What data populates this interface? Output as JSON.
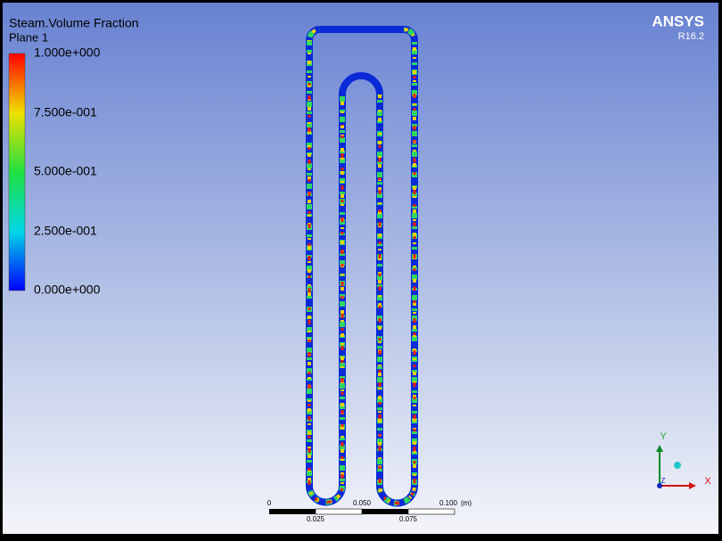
{
  "legend": {
    "title": "Steam.Volume Fraction",
    "subtitle": "Plane 1",
    "ticks": [
      "1.000e+000",
      "7.500e-001",
      "5.000e-001",
      "2.500e-001",
      "0.000e+000"
    ]
  },
  "logo": {
    "name": "ANSYS",
    "version": "R16.2"
  },
  "scale_bar": {
    "top_labels": [
      "0",
      "0.050",
      "0.100"
    ],
    "unit": "(m)",
    "bottom_labels": [
      "0.025",
      "0.075"
    ]
  },
  "axes": {
    "y": "Y",
    "x": "X",
    "z": "Z"
  }
}
